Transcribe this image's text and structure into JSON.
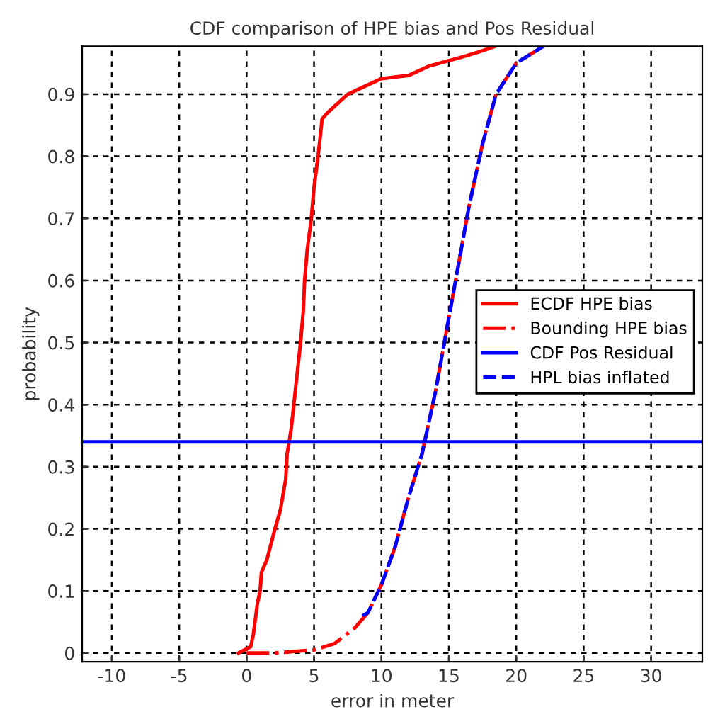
{
  "chart_data": {
    "type": "line",
    "title": "CDF comparison of HPE bias and Pos Residual",
    "xlabel": "error in meter",
    "ylabel": "probability",
    "xlim": [
      -12.2,
      33.8
    ],
    "xticks": [
      -10,
      -5,
      0,
      5,
      10,
      15,
      20,
      25,
      30
    ],
    "ylim": [
      -0.014,
      0.977
    ],
    "yticks": [
      0,
      0.1,
      0.2,
      0.3,
      0.4,
      0.5,
      0.6,
      0.7,
      0.8,
      0.9
    ],
    "grid": true,
    "legend": "right",
    "series": [
      {
        "name": "ECDF HPE bias",
        "color": "#ff0000",
        "line_style": "solid",
        "x": [
          -0.6,
          0.3,
          0.5,
          0.8,
          1.0,
          1.1,
          1.5,
          2.1,
          2.5,
          2.9,
          3.0,
          3.3,
          3.5,
          3.8,
          4.0,
          4.2,
          4.3,
          4.5,
          4.8,
          5.0,
          5.3,
          5.6,
          6.0,
          7.5,
          8.5,
          10,
          12,
          13.5,
          16,
          17.5,
          18.4
        ],
        "values": [
          0,
          0.01,
          0.03,
          0.08,
          0.1,
          0.13,
          0.15,
          0.2,
          0.23,
          0.28,
          0.32,
          0.36,
          0.4,
          0.46,
          0.5,
          0.55,
          0.6,
          0.65,
          0.7,
          0.75,
          0.8,
          0.86,
          0.87,
          0.9,
          0.91,
          0.925,
          0.93,
          0.945,
          0.96,
          0.97,
          0.977
        ]
      },
      {
        "name": "Bounding HPE bias",
        "color": "#ff0000",
        "line_style": "dashdot",
        "x": [
          0,
          2,
          5,
          6.5,
          8,
          9,
          10,
          11,
          12,
          13,
          14,
          14.5,
          15.5,
          16.5,
          17.5,
          18.5,
          20,
          22
        ],
        "values": [
          0,
          0,
          0.005,
          0.015,
          0.04,
          0.065,
          0.11,
          0.17,
          0.25,
          0.32,
          0.42,
          0.48,
          0.6,
          0.72,
          0.82,
          0.9,
          0.95,
          0.977
        ]
      },
      {
        "name": "CDF Pos Residual",
        "color": "#0000ff",
        "line_style": "solid",
        "x": [
          -12.2,
          33.8
        ],
        "values": [
          0.34,
          0.34
        ]
      },
      {
        "name": "HPL bias inflated",
        "color": "#0000ff",
        "line_style": "dashed",
        "x": [
          8.6,
          9,
          10,
          11,
          12,
          13,
          14,
          14.5,
          15.5,
          16.5,
          17.5,
          18.5,
          20,
          22
        ],
        "values": [
          0.06,
          0.065,
          0.11,
          0.17,
          0.25,
          0.32,
          0.42,
          0.48,
          0.6,
          0.72,
          0.82,
          0.9,
          0.95,
          0.977
        ]
      }
    ]
  }
}
